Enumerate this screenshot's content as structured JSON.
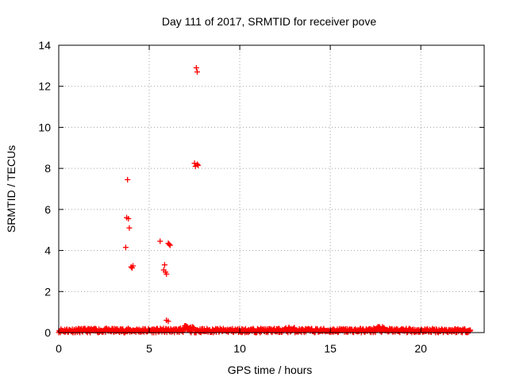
{
  "chart_data": {
    "type": "scatter",
    "title": "Day 111 of 2017, SRMTID for receiver pove",
    "xlabel": "GPS time / hours",
    "ylabel": "SRMTID / TECUs",
    "xlim": [
      0,
      23.5
    ],
    "ylim": [
      0,
      14
    ],
    "xticks": [
      0,
      5,
      10,
      15,
      20
    ],
    "yticks": [
      0,
      2,
      4,
      6,
      8,
      10,
      12,
      14
    ],
    "grid": true,
    "marker": "plus",
    "color": "#ff0000",
    "series": [
      {
        "name": "SRMTID",
        "baseline": {
          "x_start": 0.0,
          "x_end": 22.75,
          "typical_range": [
            0.0,
            0.2
          ]
        },
        "bumps": [
          {
            "x": 2.5,
            "y": 0.2
          },
          {
            "x": 7.0,
            "y": 0.35
          },
          {
            "x": 7.3,
            "y": 0.3
          },
          {
            "x": 12.8,
            "y": 0.3
          },
          {
            "x": 17.7,
            "y": 0.35
          },
          {
            "x": 21.2,
            "y": 0.2
          }
        ],
        "points": [
          {
            "x": 3.8,
            "y": 7.45
          },
          {
            "x": 3.75,
            "y": 5.6
          },
          {
            "x": 3.85,
            "y": 5.55
          },
          {
            "x": 3.9,
            "y": 5.1
          },
          {
            "x": 3.7,
            "y": 4.15
          },
          {
            "x": 4.0,
            "y": 3.2
          },
          {
            "x": 4.1,
            "y": 3.25
          },
          {
            "x": 4.05,
            "y": 3.15
          },
          {
            "x": 5.6,
            "y": 4.45
          },
          {
            "x": 5.85,
            "y": 3.3
          },
          {
            "x": 5.8,
            "y": 3.05
          },
          {
            "x": 5.9,
            "y": 2.95
          },
          {
            "x": 5.95,
            "y": 2.85
          },
          {
            "x": 6.05,
            "y": 4.35
          },
          {
            "x": 6.15,
            "y": 4.25
          },
          {
            "x": 6.1,
            "y": 4.3
          },
          {
            "x": 5.95,
            "y": 0.6
          },
          {
            "x": 6.05,
            "y": 0.55
          },
          {
            "x": 7.6,
            "y": 12.9
          },
          {
            "x": 7.65,
            "y": 12.7
          },
          {
            "x": 7.5,
            "y": 8.25
          },
          {
            "x": 7.55,
            "y": 8.1
          },
          {
            "x": 7.65,
            "y": 8.2
          },
          {
            "x": 7.7,
            "y": 8.15
          },
          {
            "x": 3.8,
            "y": 0.05
          },
          {
            "x": 5.7,
            "y": 0.15
          }
        ]
      }
    ]
  }
}
